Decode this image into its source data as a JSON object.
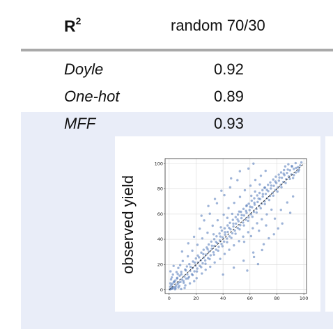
{
  "table": {
    "metric_label": "R",
    "metric_superscript": "2",
    "split_label": "random 70/30",
    "rows": [
      {
        "name": "Doyle",
        "value": "0.92"
      },
      {
        "name": "One-hot",
        "value": "0.89"
      },
      {
        "name": "MFF",
        "value": "0.93"
      }
    ]
  },
  "colors": {
    "highlight": "#e9edf8",
    "rule": "#a9a9a9",
    "points": "#4f77b8",
    "diagonal": "#222222"
  },
  "chart_data": {
    "type": "scatter",
    "ylabel": "observed yield",
    "xlabel": "",
    "xlim": [
      -3,
      102
    ],
    "ylim": [
      -3,
      104
    ],
    "xticks": [
      0,
      20,
      40,
      60,
      80,
      100
    ],
    "yticks": [
      0,
      20,
      40,
      60,
      80,
      100
    ],
    "grid": true,
    "reference_line": {
      "from": [
        0,
        0
      ],
      "to": [
        100,
        100
      ],
      "style": "dashed"
    },
    "points": [
      [
        0.5,
        0.3
      ],
      [
        1.2,
        0.5
      ],
      [
        2.1,
        1.0
      ],
      [
        0.8,
        2.4
      ],
      [
        3.0,
        1.5
      ],
      [
        1.7,
        3.6
      ],
      [
        4.1,
        2.2
      ],
      [
        2.5,
        4.8
      ],
      [
        5.2,
        3.1
      ],
      [
        3.8,
        6.0
      ],
      [
        6.3,
        4.5
      ],
      [
        4.6,
        7.4
      ],
      [
        7.1,
        5.8
      ],
      [
        5.9,
        8.9
      ],
      [
        8.4,
        6.2
      ],
      [
        2.0,
        9.8
      ],
      [
        9.5,
        8.1
      ],
      [
        7.8,
        11.2
      ],
      [
        10.6,
        7.0
      ],
      [
        6.4,
        12.5
      ],
      [
        11.3,
        10.4
      ],
      [
        12.7,
        8.8
      ],
      [
        9.0,
        14.1
      ],
      [
        13.5,
        12.2
      ],
      [
        14.8,
        10.1
      ],
      [
        11.9,
        16.0
      ],
      [
        15.6,
        14.9
      ],
      [
        16.9,
        12.3
      ],
      [
        13.2,
        18.5
      ],
      [
        17.4,
        17.2
      ],
      [
        18.8,
        14.6
      ],
      [
        15.0,
        20.3
      ],
      [
        19.6,
        19.1
      ],
      [
        20.9,
        16.8
      ],
      [
        17.7,
        22.4
      ],
      [
        21.5,
        21.6
      ],
      [
        22.8,
        18.9
      ],
      [
        19.9,
        24.8
      ],
      [
        23.6,
        23.4
      ],
      [
        24.9,
        21.0
      ],
      [
        21.3,
        27.1
      ],
      [
        25.7,
        25.6
      ],
      [
        26.8,
        23.2
      ],
      [
        23.9,
        29.4
      ],
      [
        27.5,
        27.9
      ],
      [
        28.9,
        25.1
      ],
      [
        25.6,
        31.7
      ],
      [
        29.6,
        30.2
      ],
      [
        30.8,
        27.3
      ],
      [
        27.9,
        33.5
      ],
      [
        31.7,
        32.6
      ],
      [
        32.9,
        29.7
      ],
      [
        29.4,
        35.9
      ],
      [
        33.6,
        34.8
      ],
      [
        34.9,
        31.8
      ],
      [
        31.3,
        38.2
      ],
      [
        35.7,
        36.9
      ],
      [
        36.8,
        34.0
      ],
      [
        33.5,
        40.1
      ],
      [
        37.6,
        39.0
      ],
      [
        38.9,
        36.3
      ],
      [
        35.2,
        42.4
      ],
      [
        39.7,
        41.5
      ],
      [
        40.8,
        38.2
      ],
      [
        37.4,
        44.6
      ],
      [
        41.6,
        43.7
      ],
      [
        42.9,
        40.6
      ],
      [
        39.1,
        46.9
      ],
      [
        43.5,
        45.8
      ],
      [
        44.8,
        42.3
      ],
      [
        41.2,
        48.7
      ],
      [
        45.6,
        47.9
      ],
      [
        46.9,
        44.8
      ],
      [
        43.4,
        51.0
      ],
      [
        47.7,
        50.2
      ],
      [
        48.8,
        46.9
      ],
      [
        45.1,
        53.1
      ],
      [
        49.6,
        52.4
      ],
      [
        50.9,
        49.0
      ],
      [
        47.3,
        55.4
      ],
      [
        51.5,
        54.3
      ],
      [
        52.8,
        51.2
      ],
      [
        49.4,
        57.6
      ],
      [
        53.7,
        56.8
      ],
      [
        54.9,
        53.3
      ],
      [
        51.1,
        59.7
      ],
      [
        55.6,
        58.9
      ],
      [
        56.8,
        55.6
      ],
      [
        53.3,
        61.8
      ],
      [
        57.5,
        61.0
      ],
      [
        58.9,
        57.4
      ],
      [
        55.2,
        64.1
      ],
      [
        59.7,
        63.2
      ],
      [
        60.8,
        59.9
      ],
      [
        57.4,
        66.3
      ],
      [
        61.6,
        65.4
      ],
      [
        62.9,
        61.8
      ],
      [
        59.1,
        68.2
      ],
      [
        63.5,
        67.5
      ],
      [
        64.8,
        64.0
      ],
      [
        61.3,
        70.6
      ],
      [
        65.7,
        69.6
      ],
      [
        66.9,
        66.2
      ],
      [
        63.2,
        72.5
      ],
      [
        67.6,
        71.9
      ],
      [
        68.8,
        68.3
      ],
      [
        65.4,
        74.8
      ],
      [
        69.5,
        73.9
      ],
      [
        70.9,
        70.1
      ],
      [
        67.1,
        76.7
      ],
      [
        71.7,
        76.0
      ],
      [
        72.8,
        72.6
      ],
      [
        69.3,
        78.9
      ],
      [
        73.6,
        78.2
      ],
      [
        74.9,
        74.5
      ],
      [
        71.2,
        81.0
      ],
      [
        75.5,
        80.3
      ],
      [
        76.8,
        76.8
      ],
      [
        73.4,
        83.2
      ],
      [
        77.7,
        82.4
      ],
      [
        78.9,
        79.0
      ],
      [
        75.1,
        85.1
      ],
      [
        79.6,
        84.6
      ],
      [
        80.8,
        81.1
      ],
      [
        77.3,
        87.4
      ],
      [
        81.5,
        86.5
      ],
      [
        82.9,
        83.2
      ],
      [
        79.2,
        89.6
      ],
      [
        83.7,
        88.8
      ],
      [
        84.8,
        85.5
      ],
      [
        81.4,
        91.3
      ],
      [
        85.6,
        90.9
      ],
      [
        86.9,
        87.6
      ],
      [
        83.1,
        93.0
      ],
      [
        87.5,
        92.6
      ],
      [
        88.8,
        89.8
      ],
      [
        85.3,
        94.9
      ],
      [
        89.7,
        94.7
      ],
      [
        90.8,
        91.4
      ],
      [
        92.6,
        95.8
      ],
      [
        94.1,
        93.0
      ],
      [
        91.2,
        97.6
      ],
      [
        95.7,
        97.2
      ],
      [
        93.9,
        100.4
      ],
      [
        97.3,
        98.6
      ],
      [
        96.5,
        95.1
      ],
      [
        98.2,
        101.0
      ],
      [
        88.5,
        99.5
      ],
      [
        92.0,
        88.6
      ],
      [
        86.2,
        97.8
      ],
      [
        5.5,
        14.0
      ],
      [
        8.2,
        19.5
      ],
      [
        12.0,
        3.5
      ],
      [
        15.4,
        5.0
      ],
      [
        10.1,
        22.8
      ],
      [
        18.6,
        6.8
      ],
      [
        6.8,
        17.3
      ],
      [
        20.4,
        9.2
      ],
      [
        13.9,
        26.5
      ],
      [
        24.3,
        12.9
      ],
      [
        17.2,
        31.0
      ],
      [
        27.1,
        15.8
      ],
      [
        21.0,
        35.6
      ],
      [
        30.5,
        18.2
      ],
      [
        24.6,
        40.7
      ],
      [
        33.8,
        21.6
      ],
      [
        28.5,
        45.2
      ],
      [
        37.9,
        24.5
      ],
      [
        32.3,
        50.8
      ],
      [
        41.2,
        28.4
      ],
      [
        36.0,
        55.1
      ],
      [
        44.6,
        31.7
      ],
      [
        40.5,
        59.5
      ],
      [
        48.1,
        35.2
      ],
      [
        44.1,
        64.7
      ],
      [
        51.9,
        38.5
      ],
      [
        48.3,
        68.9
      ],
      [
        55.0,
        42.1
      ],
      [
        52.6,
        73.6
      ],
      [
        58.7,
        45.6
      ],
      [
        56.2,
        78.9
      ],
      [
        62.1,
        48.8
      ],
      [
        60.4,
        82.5
      ],
      [
        65.3,
        52.7
      ],
      [
        64.0,
        87.1
      ],
      [
        68.8,
        55.9
      ],
      [
        68.1,
        90.4
      ],
      [
        72.5,
        59.8
      ],
      [
        71.6,
        94.3
      ],
      [
        76.0,
        63.5
      ],
      [
        26.0,
        55.0
      ],
      [
        30.2,
        60.3
      ],
      [
        35.5,
        68.6
      ],
      [
        22.7,
        48.4
      ],
      [
        41.0,
        75.0
      ],
      [
        18.5,
        42.0
      ],
      [
        45.3,
        81.2
      ],
      [
        14.2,
        36.8
      ],
      [
        50.7,
        86.9
      ],
      [
        9.6,
        30.3
      ],
      [
        40.0,
        12.0
      ],
      [
        48.0,
        17.5
      ],
      [
        55.3,
        23.0
      ],
      [
        62.5,
        29.5
      ],
      [
        70.2,
        36.1
      ],
      [
        77.8,
        44.0
      ],
      [
        84.0,
        52.5
      ],
      [
        89.9,
        61.0
      ],
      [
        58.0,
        15.2
      ],
      [
        66.0,
        20.4
      ],
      [
        33.0,
        44.0
      ],
      [
        38.4,
        49.5
      ],
      [
        43.2,
        57.0
      ],
      [
        46.8,
        60.2
      ],
      [
        52.0,
        62.0
      ],
      [
        57.6,
        67.0
      ],
      [
        61.0,
        74.5
      ],
      [
        63.8,
        77.9
      ],
      [
        67.3,
        83.5
      ],
      [
        70.8,
        80.9
      ],
      [
        3.5,
        6.5
      ],
      [
        4.8,
        1.2
      ],
      [
        6.0,
        9.5
      ],
      [
        7.5,
        3.0
      ],
      [
        9.1,
        12.2
      ],
      [
        10.8,
        5.6
      ],
      [
        12.4,
        15.3
      ],
      [
        14.0,
        9.0
      ],
      [
        15.9,
        18.1
      ],
      [
        17.5,
        11.6
      ],
      [
        19.0,
        21.5
      ],
      [
        20.6,
        14.5
      ],
      [
        22.2,
        25.7
      ],
      [
        23.8,
        17.9
      ],
      [
        25.4,
        28.2
      ],
      [
        27.0,
        20.6
      ],
      [
        28.6,
        32.1
      ],
      [
        30.1,
        24.3
      ],
      [
        31.8,
        34.9
      ],
      [
        33.3,
        27.8
      ],
      [
        34.8,
        38.0
      ],
      [
        36.4,
        31.0
      ],
      [
        38.0,
        42.2
      ],
      [
        39.6,
        34.5
      ],
      [
        41.5,
        45.6
      ],
      [
        43.0,
        37.7
      ],
      [
        44.5,
        49.1
      ],
      [
        46.2,
        41.1
      ],
      [
        47.7,
        52.4
      ],
      [
        49.3,
        44.4
      ],
      [
        50.8,
        55.8
      ],
      [
        52.3,
        47.9
      ],
      [
        53.9,
        59.2
      ],
      [
        55.5,
        51.0
      ],
      [
        57.1,
        62.5
      ],
      [
        58.6,
        54.7
      ],
      [
        60.2,
        65.8
      ],
      [
        61.8,
        57.9
      ],
      [
        63.3,
        69.0
      ],
      [
        64.9,
        61.2
      ],
      [
        66.4,
        72.3
      ],
      [
        68.0,
        64.6
      ],
      [
        69.6,
        75.9
      ],
      [
        71.1,
        67.9
      ],
      [
        72.6,
        79.2
      ],
      [
        74.3,
        71.1
      ],
      [
        75.8,
        82.6
      ],
      [
        77.3,
        74.6
      ],
      [
        78.8,
        85.8
      ],
      [
        80.4,
        77.9
      ],
      [
        81.9,
        89.0
      ],
      [
        83.4,
        81.3
      ],
      [
        85.0,
        92.1
      ],
      [
        86.5,
        84.6
      ],
      [
        88.1,
        95.3
      ],
      [
        89.6,
        87.9
      ],
      [
        91.1,
        98.2
      ],
      [
        92.6,
        90.9
      ],
      [
        94.3,
        96.6
      ],
      [
        95.9,
        93.8
      ],
      [
        2.8,
        12.0
      ],
      [
        1.4,
        8.2
      ],
      [
        0.9,
        5.0
      ],
      [
        4.4,
        0.4
      ],
      [
        2.2,
        0.9
      ],
      [
        6.9,
        1.8
      ],
      [
        1.0,
        14.6
      ],
      [
        3.3,
        18.9
      ],
      [
        8.9,
        0.6
      ],
      [
        11.5,
        1.4
      ],
      [
        34.0,
        72.0
      ],
      [
        38.8,
        78.5
      ],
      [
        29.1,
        66.4
      ],
      [
        24.0,
        58.7
      ],
      [
        52.5,
        94.0
      ],
      [
        46.0,
        88.3
      ],
      [
        58.9,
        96.1
      ],
      [
        62.6,
        100.0
      ],
      [
        55.7,
        38.0
      ],
      [
        60.8,
        42.5
      ],
      [
        66.7,
        46.8
      ],
      [
        72.0,
        51.0
      ],
      [
        78.5,
        56.4
      ],
      [
        83.0,
        63.3
      ],
      [
        87.7,
        69.2
      ],
      [
        74.0,
        40.8
      ],
      [
        80.9,
        48.6
      ],
      [
        92.0,
        74.0
      ],
      [
        69.0,
        31.5
      ],
      [
        63.0,
        26.0
      ]
    ]
  }
}
